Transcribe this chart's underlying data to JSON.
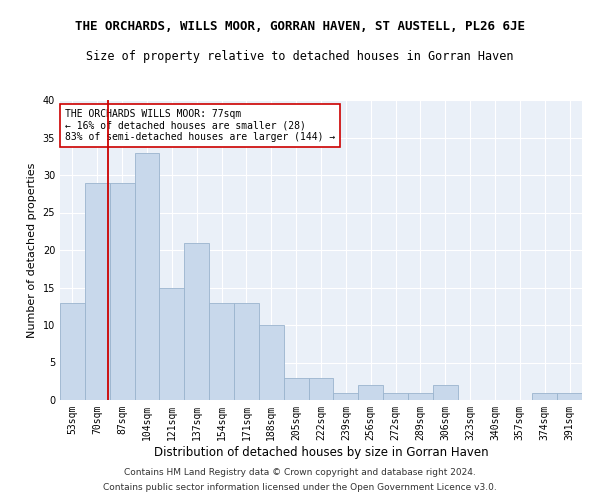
{
  "title": "THE ORCHARDS, WILLS MOOR, GORRAN HAVEN, ST AUSTELL, PL26 6JE",
  "subtitle": "Size of property relative to detached houses in Gorran Haven",
  "xlabel": "Distribution of detached houses by size in Gorran Haven",
  "ylabel": "Number of detached properties",
  "categories": [
    "53sqm",
    "70sqm",
    "87sqm",
    "104sqm",
    "121sqm",
    "137sqm",
    "154sqm",
    "171sqm",
    "188sqm",
    "205sqm",
    "222sqm",
    "239sqm",
    "256sqm",
    "272sqm",
    "289sqm",
    "306sqm",
    "323sqm",
    "340sqm",
    "357sqm",
    "374sqm",
    "391sqm"
  ],
  "values": [
    13,
    29,
    29,
    33,
    15,
    21,
    13,
    13,
    10,
    3,
    3,
    1,
    2,
    1,
    1,
    2,
    0,
    0,
    0,
    1,
    1
  ],
  "bar_color": "#c8d8eb",
  "bar_edge_color": "#9ab4ce",
  "marker_line_color": "#cc0000",
  "annotation_line1": "THE ORCHARDS WILLS MOOR: 77sqm",
  "annotation_line2": "← 16% of detached houses are smaller (28)",
  "annotation_line3": "83% of semi-detached houses are larger (144) →",
  "ylim": [
    0,
    40
  ],
  "yticks": [
    0,
    5,
    10,
    15,
    20,
    25,
    30,
    35,
    40
  ],
  "background_color": "#eaf0f8",
  "grid_color": "#ffffff",
  "footer1": "Contains HM Land Registry data © Crown copyright and database right 2024.",
  "footer2": "Contains public sector information licensed under the Open Government Licence v3.0.",
  "title_fontsize": 9,
  "subtitle_fontsize": 8.5,
  "xlabel_fontsize": 8.5,
  "ylabel_fontsize": 8,
  "tick_fontsize": 7,
  "annotation_fontsize": 7,
  "footer_fontsize": 6.5
}
